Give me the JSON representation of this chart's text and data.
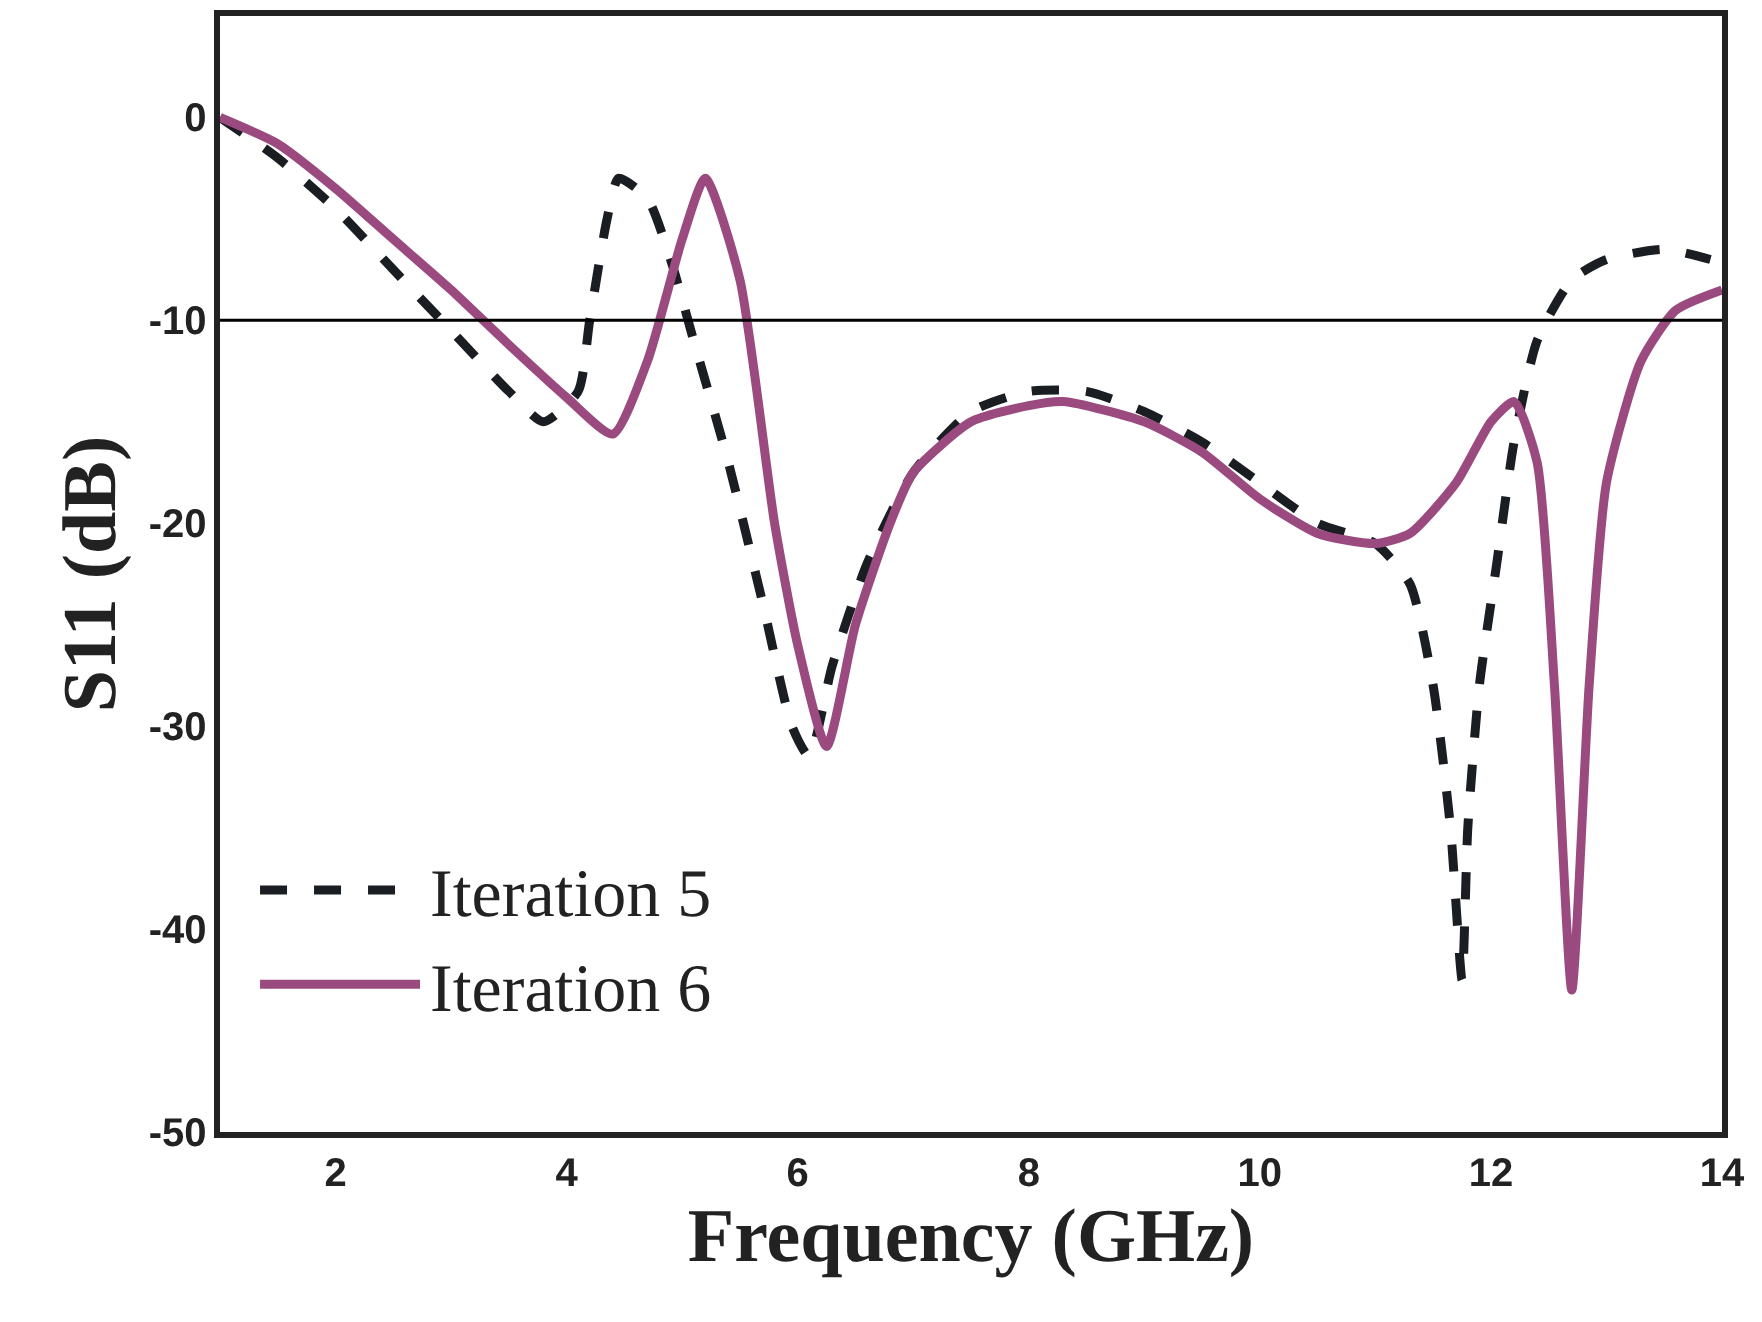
{
  "chart_data": {
    "type": "line",
    "xlabel": "Frequency (GHz)",
    "ylabel": "S11 (dB)",
    "xlim": [
      1,
      14
    ],
    "xticks": [
      2,
      4,
      6,
      8,
      10,
      12,
      14
    ],
    "ylim": [
      -50,
      5
    ],
    "yticks": [
      0,
      -10,
      -20,
      -30,
      -40,
      -50
    ],
    "legend": "bottom left",
    "marker": "none",
    "ref_lines": [
      {
        "axis": "y",
        "value": -10,
        "color": "#000000",
        "line_style": "solid"
      }
    ],
    "series": [
      {
        "name": "Iteration 5",
        "color": "#1a1e22",
        "line_style": "dashed",
        "x": [
          1,
          1.5,
          2,
          2.5,
          3,
          3.5,
          3.8,
          4.1,
          4.2,
          4.35,
          4.45,
          4.7,
          4.9,
          5.1,
          5.4,
          5.7,
          5.95,
          6.1,
          6.3,
          6.6,
          7,
          7.5,
          8,
          8.5,
          9,
          9.5,
          10,
          10.5,
          11,
          11.3,
          11.5,
          11.65,
          11.75,
          11.8,
          11.9,
          12.05,
          12.2,
          12.4,
          12.7,
          13,
          13.5,
          13.9
        ],
        "values": [
          0,
          -2,
          -4.5,
          -7.5,
          -10.5,
          -13.5,
          -15,
          -13.5,
          -10,
          -5,
          -3,
          -4,
          -7,
          -11,
          -17,
          -24,
          -30,
          -31.5,
          -27,
          -22,
          -17.5,
          -14.5,
          -13.5,
          -13.5,
          -14.5,
          -16,
          -18,
          -20,
          -21,
          -23,
          -28,
          -35,
          -42.5,
          -35,
          -28,
          -22,
          -16,
          -11,
          -8,
          -7,
          -6.5,
          -7
        ]
      },
      {
        "name": "Iteration 6",
        "color": "#9b4a80",
        "line_style": "solid",
        "x": [
          1,
          1.5,
          2,
          2.5,
          3,
          3.5,
          4,
          4.4,
          4.7,
          5,
          5.2,
          5.5,
          5.8,
          6,
          6.25,
          6.5,
          6.8,
          7,
          7.5,
          8,
          8.3,
          9,
          9.5,
          10,
          10.5,
          11,
          11.3,
          11.7,
          12,
          12.2,
          12.4,
          12.55,
          12.7,
          12.85,
          13,
          13.3,
          13.6,
          14
        ],
        "values": [
          0,
          -1.3,
          -3.5,
          -6,
          -8.5,
          -11.2,
          -13.8,
          -15.6,
          -12,
          -6,
          -3,
          -8,
          -20,
          -26,
          -31,
          -25,
          -20,
          -17.5,
          -15,
          -14.2,
          -14,
          -15,
          -16.5,
          -18.8,
          -20.5,
          -21,
          -20.5,
          -18,
          -15,
          -14,
          -17,
          -28,
          -43,
          -28,
          -18,
          -12,
          -9.5,
          -8.5
        ]
      }
    ]
  }
}
